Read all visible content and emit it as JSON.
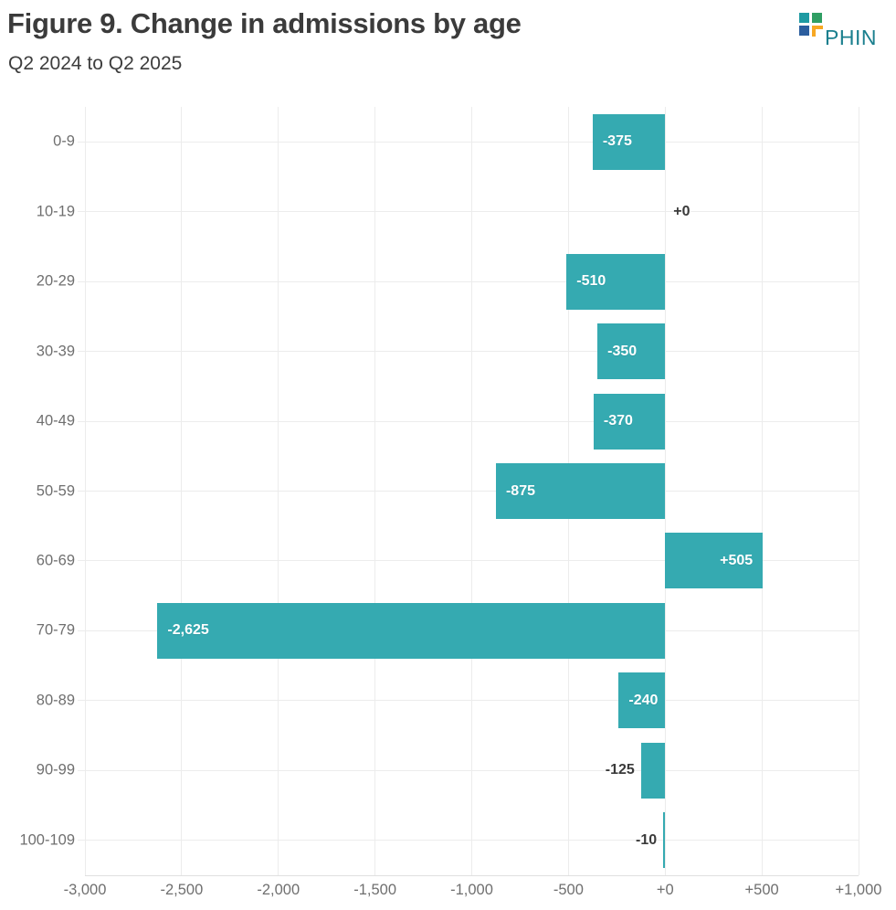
{
  "header": {
    "title": "Figure 9. Change in admissions by age",
    "subtitle": "Q2 2024 to Q2 2025"
  },
  "logo": {
    "text": "PHIN",
    "text_color": "#1a7f8e",
    "square_teal": "#1e9aa2",
    "square_green": "#2f9e63",
    "square_blue": "#2b5d9e",
    "bracket_orange": "#f7a823"
  },
  "chart_data": {
    "type": "bar",
    "orientation": "horizontal",
    "title": "Figure 9. Change in admissions by age",
    "subtitle": "Q2 2024 to Q2 2025",
    "categories": [
      "0-9",
      "10-19",
      "20-29",
      "30-39",
      "40-49",
      "50-59",
      "60-69",
      "70-79",
      "80-89",
      "90-99",
      "100-109"
    ],
    "values": [
      -375,
      0,
      -510,
      -350,
      -370,
      -875,
      505,
      -2625,
      -240,
      -125,
      -10
    ],
    "value_labels": [
      "-375",
      "+0",
      "-510",
      "-350",
      "-370",
      "-875",
      "+505",
      "-2,625",
      "-240",
      "-125",
      "-10"
    ],
    "x_tick_values": [
      -3000,
      -2500,
      -2000,
      -1500,
      -1000,
      -500,
      0,
      500,
      1000
    ],
    "x_tick_labels": [
      "-3,000",
      "-2,500",
      "-2,000",
      "-1,500",
      "-1,000",
      "-500",
      "+0",
      "+500",
      "+1,000"
    ],
    "xlim": [
      -3000,
      1000
    ],
    "grid": true,
    "legend": "none",
    "bar_color": "#35aab1",
    "inside_label_color": "#ffffff",
    "outside_label_color": "#3a3a3a",
    "axis_label_color": "#6f6f6f",
    "gridline_color": "#ececec"
  }
}
